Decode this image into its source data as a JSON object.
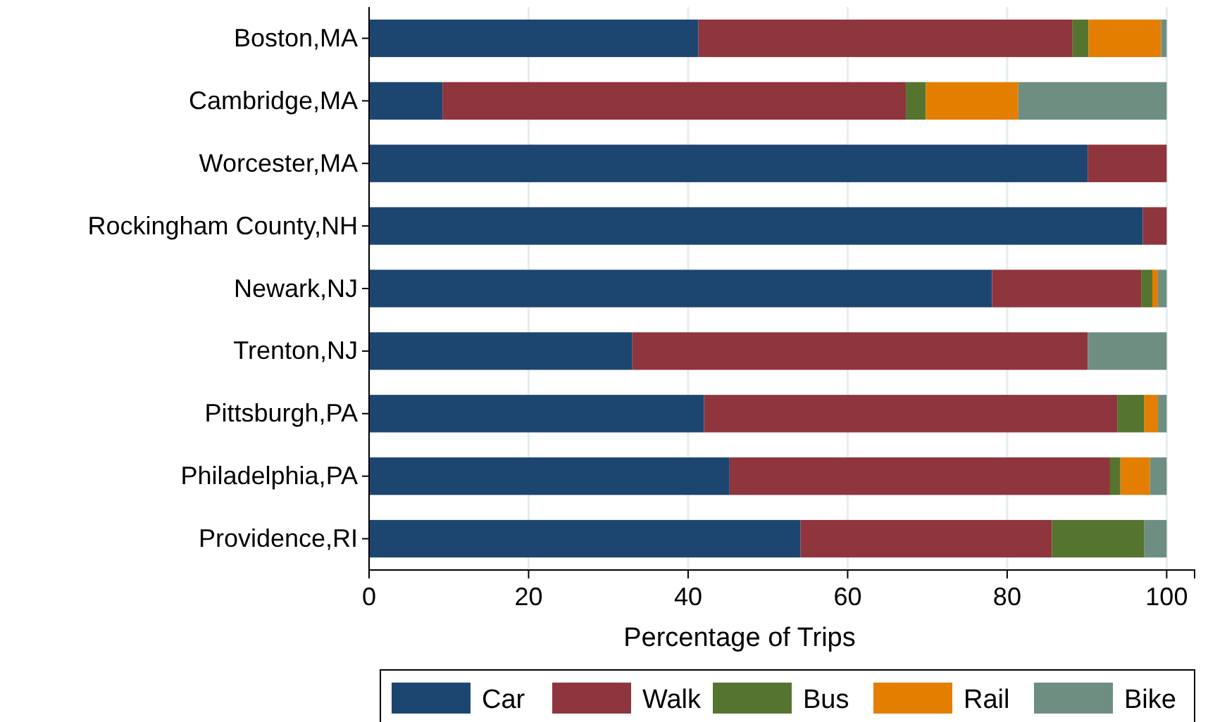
{
  "chart_data": {
    "type": "bar",
    "orientation": "horizontal",
    "stacked": true,
    "xlabel": "Percentage of Trips",
    "categories": [
      "Boston,MA",
      "Cambridge,MA",
      "Worcester,MA",
      "Rockingham County,NH",
      "Newark,NJ",
      "Trenton,NJ",
      "Pittsburgh,PA",
      "Philadelphia,PA",
      "Providence,RI"
    ],
    "series": [
      {
        "name": "Car",
        "color": "#1c4670",
        "values": [
          41.3,
          9.2,
          90.1,
          97.0,
          78.1,
          33.0,
          42.0,
          45.2,
          54.1
        ]
      },
      {
        "name": "Walk",
        "color": "#8f353d",
        "values": [
          46.9,
          58.1,
          9.9,
          3.0,
          18.7,
          57.1,
          51.8,
          47.7,
          31.5
        ]
      },
      {
        "name": "Bus",
        "color": "#55742f",
        "values": [
          2.0,
          2.5,
          0,
          0,
          1.4,
          0,
          3.4,
          1.3,
          11.6
        ]
      },
      {
        "name": "Rail",
        "color": "#e37e00",
        "values": [
          9.1,
          11.6,
          0,
          0,
          0.7,
          0,
          1.7,
          3.7,
          0
        ]
      },
      {
        "name": "Bike",
        "color": "#6e8e82",
        "values": [
          0.7,
          18.6,
          0,
          0,
          1.1,
          9.9,
          1.1,
          2.1,
          2.8
        ]
      }
    ],
    "xlim": [
      0,
      103.5
    ],
    "xticks": [
      0,
      20,
      40,
      60,
      80,
      100
    ],
    "grid": "x",
    "legend": "bottom"
  }
}
